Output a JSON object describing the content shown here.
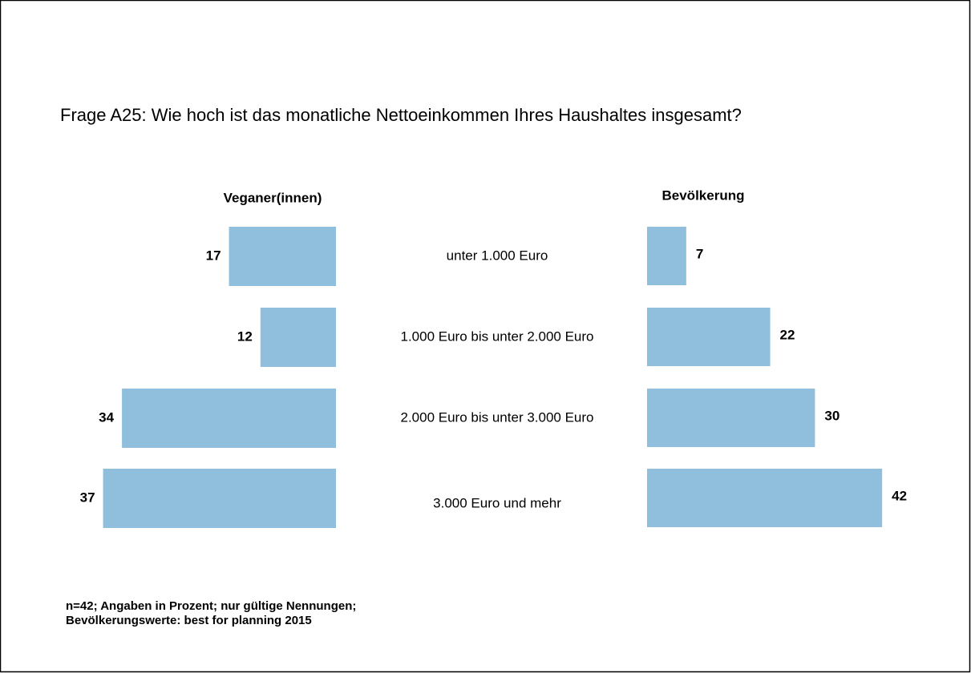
{
  "chart_data": {
    "type": "bar",
    "title": "Frage A25: Wie hoch ist das monatliche Nettoeinkommen Ihres Haushaltes insgesamt?",
    "categories": [
      "unter 1.000 Euro",
      "1.000 Euro bis unter 2.000 Euro",
      "2.000 Euro bis unter 3.000 Euro",
      "3.000 Euro und mehr"
    ],
    "series": [
      {
        "name": "Veganer(innen)",
        "color": "#8fbfdc",
        "values": [
          17,
          12,
          34,
          37
        ]
      },
      {
        "name": "Bevölkerung",
        "color": "#8fbfdc",
        "values": [
          7,
          22,
          30,
          42
        ]
      }
    ],
    "footnote": [
      "n=42; Angaben in Prozent; nur gültige Nennungen;",
      "Bevölkerungswerte: best for planning 2015"
    ]
  }
}
